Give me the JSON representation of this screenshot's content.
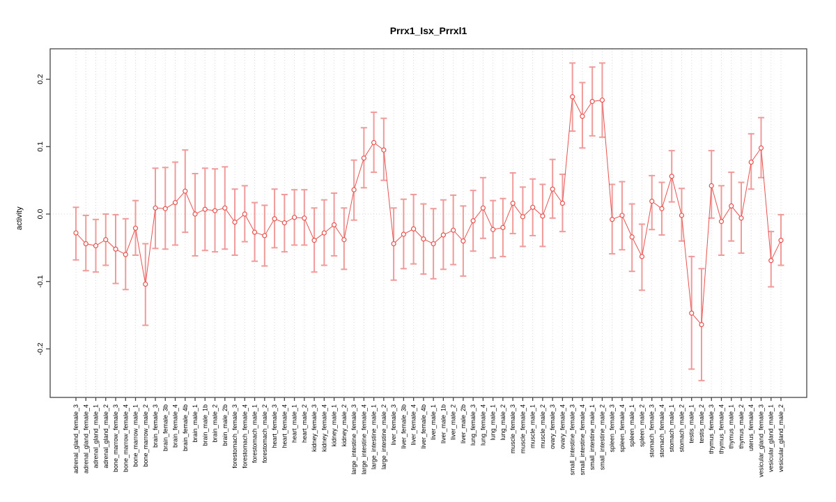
{
  "page": {
    "background": "#ffffff"
  },
  "chart_data": {
    "type": "scatter",
    "title": "Prrx1_Isx_Prrxl1",
    "xlabel": "",
    "ylabel": "activity",
    "ylim": [
      -0.272,
      0.245
    ],
    "yticks": [
      -0.2,
      -0.1,
      0.0,
      0.1,
      0.2
    ],
    "ytick_labels": [
      "-0.2",
      "-0.1",
      "0.0",
      "0.1",
      "0.2"
    ],
    "grid": "dotted vertical gridline per category; dotted horizontal reference line at 0",
    "legend_position": "none",
    "marker": "open-circle",
    "line_style": "solid segments between consecutive points",
    "colors": {
      "line_and_marker": "#e8514d",
      "error_bar": "#f09a9a",
      "gridline": "#d9d9d9",
      "zero_line": "#dcd0d0",
      "axis_box": "#444444",
      "text": "#000000"
    },
    "categories": [
      "adrenal_gland_female_3",
      "adrenal_gland_female_4",
      "adrenal_gland_male_1",
      "adrenal_gland_male_2",
      "bone_marrow_female_3",
      "bone_marrow_female_4",
      "bone_marrow_male_1",
      "bone_marrow_male_2",
      "brain_female_3",
      "brain_female_3b",
      "brain_female_4",
      "brain_female_4b",
      "brain_male_1",
      "brain_male_1b",
      "brain_male_2",
      "brain_male_2b",
      "forestomach_female_3",
      "forestomach_female_4",
      "forestomach_male_1",
      "forestomach_male_2",
      "heart_female_3",
      "heart_female_4",
      "heart_male_1",
      "heart_male_2",
      "kidney_female_3",
      "kidney_female_4",
      "kidney_male_1",
      "kidney_male_2",
      "large_intestine_female_3",
      "large_intestine_female_4",
      "large_intestine_male_1",
      "large_intestine_male_2",
      "liver_female_3",
      "liver_female_3b",
      "liver_female_4",
      "liver_female_4b",
      "liver_male_1",
      "liver_male_1b",
      "liver_male_2",
      "liver_male_2b",
      "lung_female_3",
      "lung_female_4",
      "lung_male_1",
      "lung_male_2",
      "muscle_female_3",
      "muscle_female_4",
      "muscle_male_1",
      "muscle_male_2",
      "ovary_female_3",
      "ovary_female_4",
      "small_intestine_female_3",
      "small_intestine_female_4",
      "small_intestine_male_1",
      "small_intestine_male_2",
      "spleen_female_3",
      "spleen_female_4",
      "spleen_male_1",
      "spleen_male_2",
      "stomach_female_3",
      "stomach_female_4",
      "stomach_male_1",
      "stomach_male_2",
      "testis_male_1",
      "testis_male_2",
      "thymus_female_3",
      "thymus_female_4",
      "thymus_male_1",
      "thymus_male_2",
      "uterus_female_4",
      "vesicular_gland_female_3",
      "vesicular_gland_male_1",
      "vesicular_gland_male_2"
    ],
    "values": [
      -0.028,
      -0.044,
      -0.047,
      -0.038,
      -0.052,
      -0.06,
      -0.021,
      -0.104,
      0.009,
      0.008,
      0.017,
      0.034,
      0.0,
      0.007,
      0.005,
      0.009,
      -0.012,
      0.0,
      -0.027,
      -0.032,
      -0.007,
      -0.013,
      -0.005,
      -0.006,
      -0.039,
      -0.028,
      -0.016,
      -0.038,
      0.036,
      0.083,
      0.106,
      0.095,
      -0.044,
      -0.03,
      -0.022,
      -0.037,
      -0.044,
      -0.031,
      -0.024,
      -0.04,
      -0.01,
      0.009,
      -0.023,
      -0.02,
      0.016,
      -0.004,
      0.01,
      -0.003,
      0.037,
      0.016,
      0.174,
      0.145,
      0.167,
      0.169,
      -0.008,
      -0.002,
      -0.034,
      -0.063,
      0.019,
      0.008,
      0.056,
      -0.002,
      -0.147,
      -0.164,
      0.042,
      -0.011,
      0.012,
      -0.006,
      0.077,
      0.098,
      -0.069,
      -0.039
    ],
    "ci_low": [
      -0.068,
      -0.084,
      -0.086,
      -0.076,
      -0.103,
      -0.112,
      -0.061,
      -0.165,
      -0.051,
      -0.052,
      -0.046,
      -0.027,
      -0.062,
      -0.054,
      -0.056,
      -0.052,
      -0.061,
      -0.041,
      -0.07,
      -0.077,
      -0.05,
      -0.056,
      -0.046,
      -0.046,
      -0.086,
      -0.076,
      -0.062,
      -0.082,
      -0.009,
      0.039,
      0.062,
      0.05,
      -0.098,
      -0.081,
      -0.074,
      -0.089,
      -0.096,
      -0.082,
      -0.075,
      -0.092,
      -0.055,
      -0.036,
      -0.065,
      -0.063,
      -0.029,
      -0.048,
      -0.032,
      -0.048,
      -0.006,
      -0.026,
      0.123,
      0.098,
      0.116,
      0.114,
      -0.059,
      -0.053,
      -0.085,
      -0.113,
      -0.023,
      -0.031,
      0.018,
      -0.04,
      -0.23,
      -0.247,
      -0.006,
      -0.061,
      -0.04,
      -0.058,
      0.037,
      0.054,
      -0.108,
      -0.076
    ],
    "ci_high": [
      0.01,
      -0.002,
      -0.008,
      0.0,
      -0.001,
      -0.007,
      0.02,
      -0.044,
      0.068,
      0.069,
      0.077,
      0.095,
      0.06,
      0.068,
      0.067,
      0.07,
      0.037,
      0.042,
      0.017,
      0.013,
      0.037,
      0.029,
      0.036,
      0.036,
      0.009,
      0.021,
      0.031,
      0.009,
      0.08,
      0.128,
      0.151,
      0.142,
      0.009,
      0.022,
      0.029,
      0.015,
      0.008,
      0.021,
      0.028,
      0.012,
      0.035,
      0.054,
      0.02,
      0.023,
      0.061,
      0.04,
      0.052,
      0.044,
      0.081,
      0.059,
      0.224,
      0.195,
      0.218,
      0.224,
      0.044,
      0.048,
      0.015,
      -0.015,
      0.057,
      0.047,
      0.094,
      0.038,
      -0.063,
      -0.081,
      0.094,
      0.042,
      0.062,
      0.047,
      0.119,
      0.143,
      -0.026,
      -0.001
    ]
  }
}
